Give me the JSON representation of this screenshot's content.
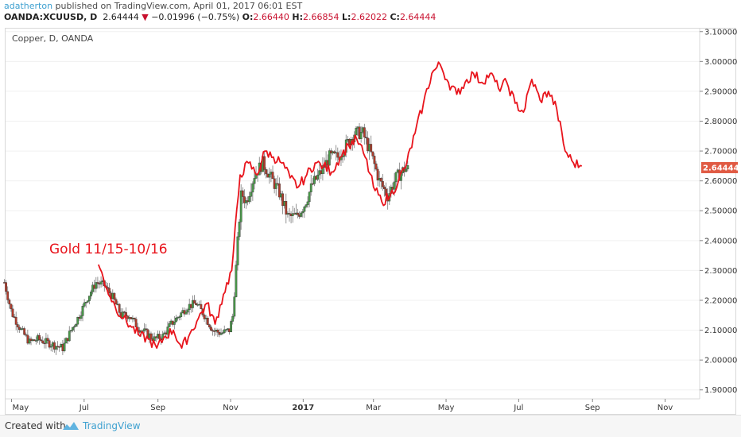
{
  "header": {
    "author": "adatherton",
    "published_text": " published on TradingView.com, April 01, 2017 06:01 EST",
    "symbol": "OANDA:XCUUSD, D",
    "price": "2.64444",
    "change": "−0.01996 (−0.75%)",
    "o_label": "O:",
    "o_value": "2.66440",
    "h_label": "H:",
    "h_value": "2.66854",
    "l_label": "L:",
    "l_value": "2.62022",
    "c_label": "C:",
    "c_value": "2.64444",
    "down_arrow": "▼"
  },
  "colors": {
    "up": "#4a9a4a",
    "down": "#b23b2b",
    "wick": "#7a7a7a",
    "overlay": "#e8141c",
    "price_badge": "#e05a43",
    "grid": "#f0f0f0"
  },
  "footer": {
    "created_with": "Created with",
    "brand": "TradingView",
    "brand_icon": "tradingview-logo-icon"
  },
  "chart_data": {
    "type": "line",
    "title": "Copper, D, OANDA",
    "annotation": "Gold 11/15-10/16",
    "last_price_label": "2.64444",
    "x_ticks": [
      "May",
      "Jul",
      "Sep",
      "Nov",
      "2017",
      "Mar",
      "May",
      "Jul",
      "Sep",
      "Nov"
    ],
    "y_ticks": [
      "3.10000",
      "3.00000",
      "2.90000",
      "2.80000",
      "2.70000",
      "2.60000",
      "2.50000",
      "2.40000",
      "2.30000",
      "2.20000",
      "2.10000",
      "2.00000",
      "1.90000"
    ],
    "ylim": [
      1.87,
      3.11
    ],
    "copper_close": {
      "x": [
        "2016-04-25",
        "2016-05-01",
        "2016-05-09",
        "2016-05-16",
        "2016-05-23",
        "2016-05-30",
        "2016-06-06",
        "2016-06-13",
        "2016-06-20",
        "2016-06-27",
        "2016-07-04",
        "2016-07-11",
        "2016-07-18",
        "2016-07-25",
        "2016-08-01",
        "2016-08-08",
        "2016-08-15",
        "2016-08-22",
        "2016-08-29",
        "2016-09-05",
        "2016-09-12",
        "2016-09-19",
        "2016-09-26",
        "2016-10-03",
        "2016-10-10",
        "2016-10-17",
        "2016-10-24",
        "2016-10-31",
        "2016-11-03",
        "2016-11-07",
        "2016-11-10",
        "2016-11-14",
        "2016-11-21",
        "2016-11-28",
        "2016-12-05",
        "2016-12-12",
        "2016-12-19",
        "2016-12-26",
        "2017-01-02",
        "2017-01-09",
        "2017-01-16",
        "2017-01-23",
        "2017-01-30",
        "2017-02-06",
        "2017-02-13",
        "2017-02-20",
        "2017-02-27",
        "2017-03-06",
        "2017-03-13",
        "2017-03-20",
        "2017-03-27",
        "2017-03-31"
      ],
      "y": [
        2.26,
        2.16,
        2.1,
        2.06,
        2.07,
        2.06,
        2.05,
        2.04,
        2.1,
        2.15,
        2.21,
        2.26,
        2.25,
        2.21,
        2.15,
        2.15,
        2.11,
        2.09,
        2.07,
        2.08,
        2.12,
        2.15,
        2.18,
        2.19,
        2.15,
        2.1,
        2.09,
        2.1,
        2.15,
        2.4,
        2.56,
        2.53,
        2.62,
        2.66,
        2.61,
        2.56,
        2.48,
        2.48,
        2.52,
        2.59,
        2.63,
        2.68,
        2.68,
        2.72,
        2.76,
        2.76,
        2.69,
        2.6,
        2.55,
        2.61,
        2.64,
        2.64
      ]
    },
    "gold_overlay": {
      "x": [
        "2016-07-13",
        "2016-07-20",
        "2016-07-27",
        "2016-08-03",
        "2016-08-10",
        "2016-08-17",
        "2016-08-24",
        "2016-08-31",
        "2016-09-07",
        "2016-09-14",
        "2016-09-21",
        "2016-09-28",
        "2016-10-05",
        "2016-10-12",
        "2016-10-19",
        "2016-10-26",
        "2016-11-02",
        "2016-11-09",
        "2016-11-16",
        "2016-11-23",
        "2016-11-30",
        "2016-12-07",
        "2016-12-14",
        "2016-12-21",
        "2016-12-28",
        "2017-01-04",
        "2017-01-11",
        "2017-01-18",
        "2017-01-25",
        "2017-02-01",
        "2017-02-08",
        "2017-02-15",
        "2017-02-22",
        "2017-03-01",
        "2017-03-08",
        "2017-03-15",
        "2017-03-22",
        "2017-03-29",
        "2017-04-05",
        "2017-04-12",
        "2017-04-19",
        "2017-04-26",
        "2017-05-03",
        "2017-05-10",
        "2017-05-17",
        "2017-05-24",
        "2017-05-31",
        "2017-06-07",
        "2017-06-14",
        "2017-06-21",
        "2017-06-28",
        "2017-07-05",
        "2017-07-12",
        "2017-07-19",
        "2017-07-26",
        "2017-08-02",
        "2017-08-09",
        "2017-08-16",
        "2017-08-23"
      ],
      "y": [
        2.32,
        2.24,
        2.18,
        2.14,
        2.11,
        2.08,
        2.07,
        2.04,
        2.08,
        2.1,
        2.04,
        2.09,
        2.14,
        2.19,
        2.12,
        2.22,
        2.3,
        2.62,
        2.66,
        2.62,
        2.7,
        2.68,
        2.66,
        2.61,
        2.58,
        2.62,
        2.66,
        2.65,
        2.63,
        2.68,
        2.72,
        2.74,
        2.68,
        2.58,
        2.53,
        2.55,
        2.6,
        2.66,
        2.76,
        2.86,
        2.96,
        2.99,
        2.93,
        2.89,
        2.93,
        2.96,
        2.93,
        2.96,
        2.91,
        2.93,
        2.86,
        2.83,
        2.94,
        2.87,
        2.9,
        2.84,
        2.7,
        2.66,
        2.65
      ]
    }
  }
}
